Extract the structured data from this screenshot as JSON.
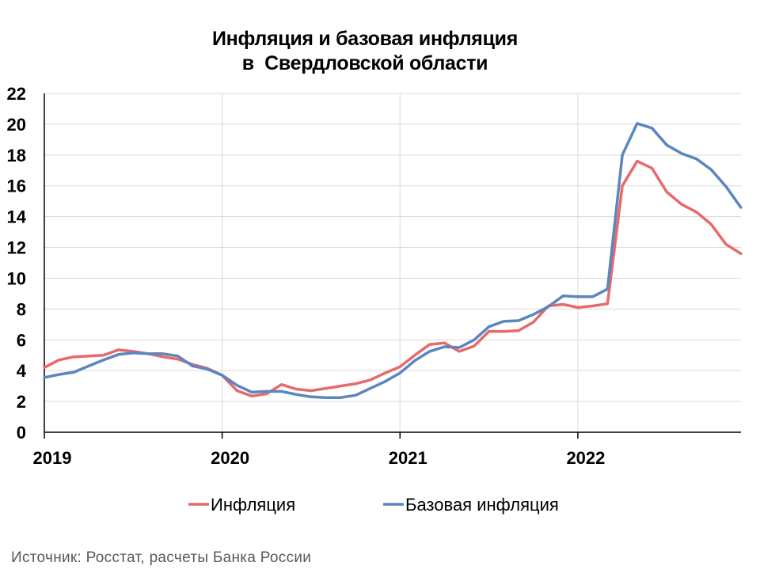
{
  "chart_data": {
    "type": "line",
    "title_lines": [
      "Инфляция и базовая инфляция",
      "в  Свердловской области"
    ],
    "xlabel": "",
    "ylabel": "",
    "ylim": [
      0,
      22
    ],
    "yticks": [
      "0",
      "2",
      "4",
      "6",
      "8",
      "10",
      "12",
      "14",
      "16",
      "18",
      "20",
      "22"
    ],
    "xticks": [
      "2019",
      "2020",
      "2021",
      "2022"
    ],
    "grid": true,
    "legend_position": "bottom",
    "x_start": "2019-01",
    "series": [
      {
        "name": "Инфляция",
        "color": "#e8696b",
        "values": [
          4.2,
          4.7,
          4.9,
          4.95,
          5.0,
          5.35,
          5.25,
          5.1,
          4.9,
          4.75,
          4.4,
          4.15,
          3.7,
          2.7,
          2.35,
          2.5,
          3.1,
          2.8,
          2.7,
          2.85,
          3.0,
          3.15,
          3.4,
          3.85,
          4.25,
          5.0,
          5.7,
          5.8,
          5.25,
          5.6,
          6.55,
          6.55,
          6.6,
          7.15,
          8.2,
          8.3,
          8.1,
          8.2,
          8.35,
          16.0,
          17.6,
          17.15,
          15.6,
          14.8,
          14.3,
          13.5,
          12.2,
          11.6
        ]
      },
      {
        "name": "Базовая инфляция",
        "color": "#5b86c0",
        "values": [
          3.55,
          3.75,
          3.9,
          4.3,
          4.7,
          5.05,
          5.15,
          5.1,
          5.1,
          4.95,
          4.3,
          4.1,
          3.7,
          3.05,
          2.6,
          2.65,
          2.65,
          2.45,
          2.3,
          2.25,
          2.25,
          2.4,
          2.85,
          3.3,
          3.85,
          4.65,
          5.25,
          5.55,
          5.5,
          6.0,
          6.85,
          7.2,
          7.25,
          7.65,
          8.15,
          8.85,
          8.8,
          8.8,
          9.3,
          18.0,
          20.05,
          19.75,
          18.65,
          18.1,
          17.75,
          17.05,
          15.95,
          14.6
        ]
      }
    ]
  },
  "source": "Источник: Росстат, расчеты Банка России"
}
